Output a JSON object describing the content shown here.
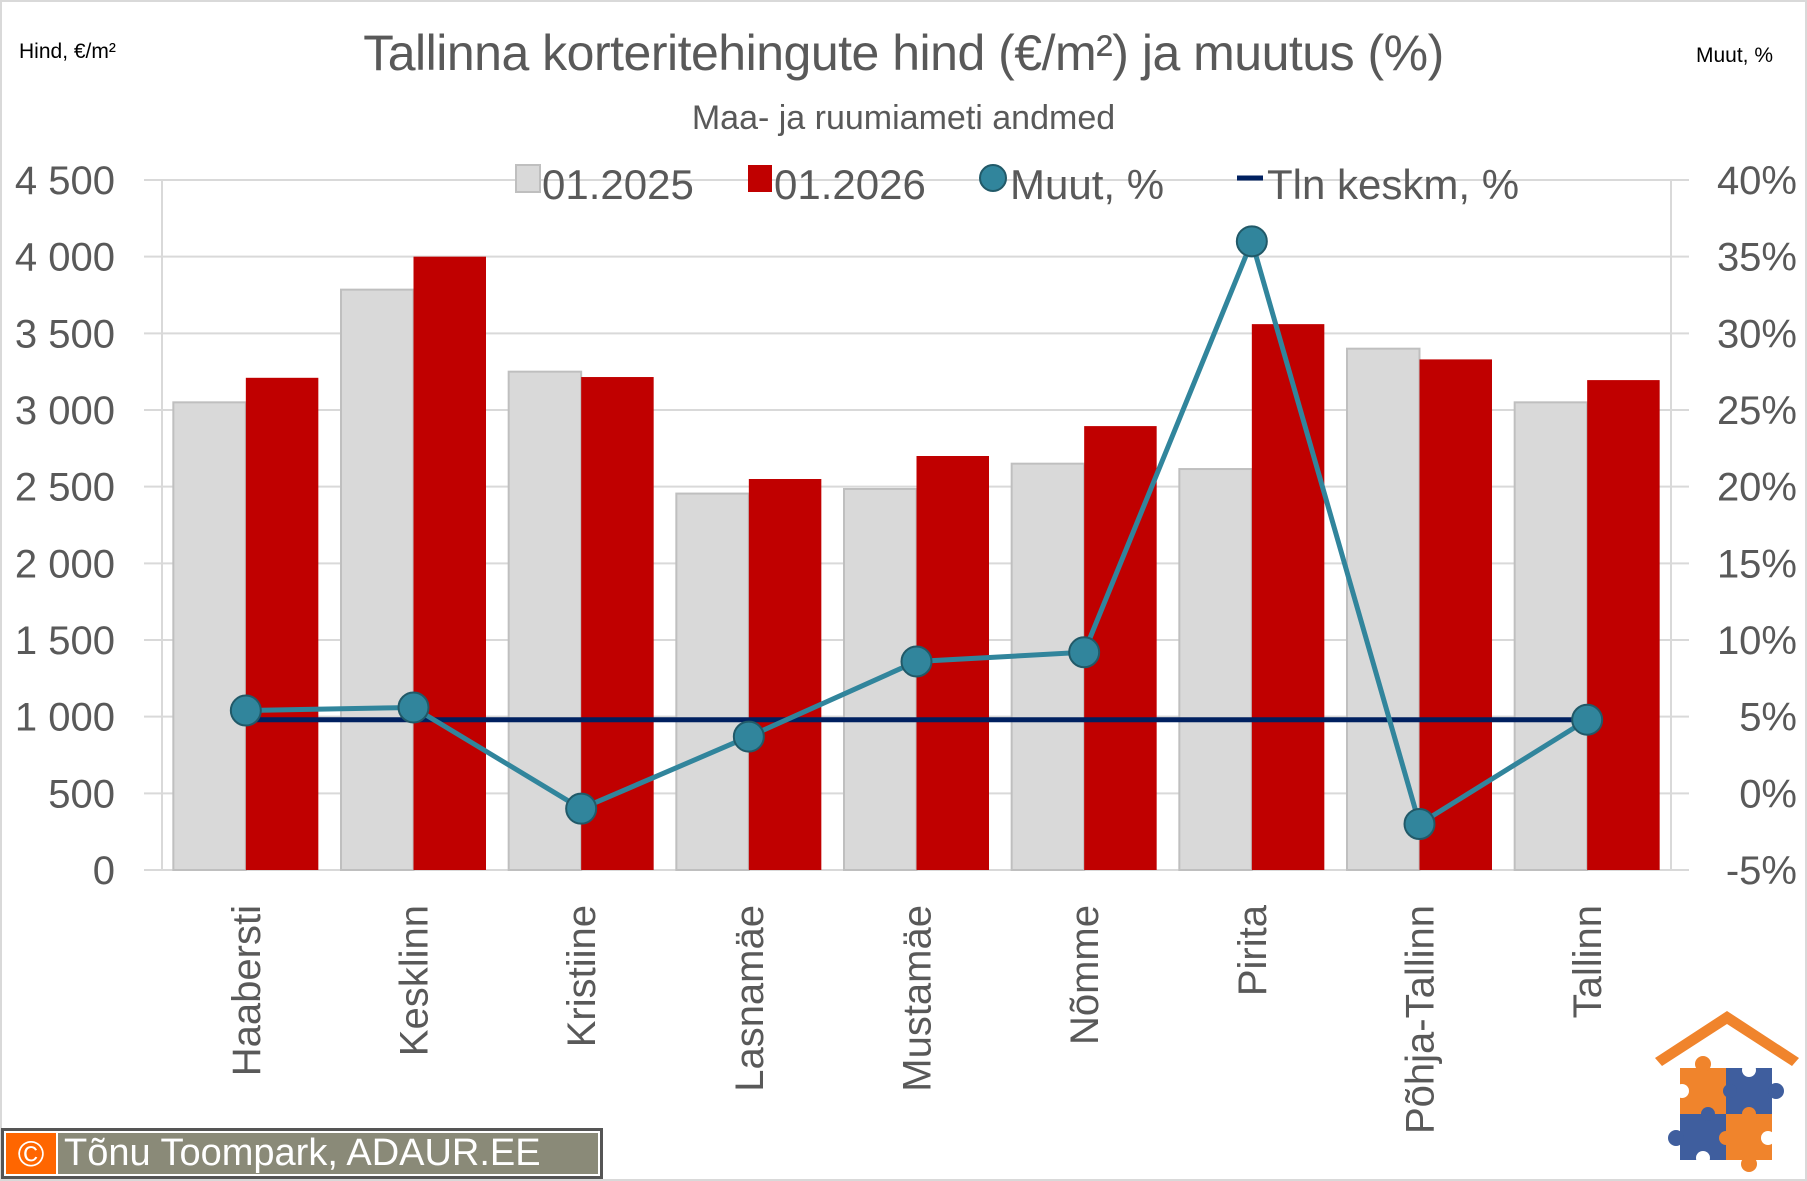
{
  "header": {
    "title": "Tallinna korteritehingute hind (€/m²) ja muutus (%)",
    "subtitle": "Maa- ja ruumiameti andmed",
    "left_axis_title": "Hind, €/m²",
    "right_axis_title": "Muut, %"
  },
  "legend": {
    "items": [
      {
        "label": "01.2025",
        "type": "bar",
        "color": "#d9d9d9"
      },
      {
        "label": "01.2026",
        "type": "bar",
        "color": "#c00000"
      },
      {
        "label": "Muut, %",
        "type": "line-marker",
        "color": "#31859c"
      },
      {
        "label": "Tln keskm, %",
        "type": "line",
        "color": "#002060"
      }
    ]
  },
  "footer": {
    "copyright_symbol": "©",
    "copyright_text": "Tõnu Toompark, ADAUR.EE"
  },
  "logo": {
    "name": "adaur-house-puzzle-logo",
    "colors": {
      "orange": "#f0842c",
      "blue": "#3f5e9e"
    }
  },
  "colors": {
    "bar_2025": "#d9d9d9",
    "bar_2025_border": "#bfbfbf",
    "bar_2026": "#c00000",
    "change_line": "#31859c",
    "marker_border": "#215968",
    "average_line": "#002060",
    "grid": "#d9d9d9",
    "text": "#595959"
  },
  "chart_data": {
    "type": "bar",
    "title": "Tallinna korteritehingute hind (€/m²) ja muutus (%)",
    "subtitle": "Maa- ja ruumiameti andmed",
    "xlabel": "",
    "ylabel": "Hind, €/m²",
    "y2label": "Muut, %",
    "ylim": [
      0,
      4500
    ],
    "y2lim": [
      -5,
      40
    ],
    "yticks": [
      "0",
      "500",
      "1 000",
      "1 500",
      "2 000",
      "2 500",
      "3 000",
      "3 500",
      "4 000",
      "4 500"
    ],
    "y2ticks": [
      "-5%",
      "0%",
      "5%",
      "10%",
      "15%",
      "20%",
      "25%",
      "30%",
      "35%",
      "40%"
    ],
    "grid": true,
    "legend_position": "top",
    "categories": [
      "Haabersti",
      "Kesklinn",
      "Kristiine",
      "Lasnamäe",
      "Mustamäe",
      "Nõmme",
      "Pirita",
      "Põhja-Tallinn",
      "Tallinn"
    ],
    "series": [
      {
        "name": "01.2025",
        "type": "bar",
        "axis": "left",
        "values": [
          3050,
          3785,
          3250,
          2455,
          2485,
          2650,
          2615,
          3400,
          3050
        ]
      },
      {
        "name": "01.2026",
        "type": "bar",
        "axis": "left",
        "values": [
          3210,
          4000,
          3215,
          2550,
          2700,
          2895,
          3560,
          3330,
          3195
        ]
      },
      {
        "name": "Muut, %",
        "type": "line",
        "axis": "right",
        "markers": true,
        "values": [
          5.4,
          5.6,
          -1.0,
          3.7,
          8.6,
          9.2,
          36.0,
          -2.0,
          4.8
        ]
      },
      {
        "name": "Tln keskm, %",
        "type": "line",
        "axis": "right",
        "markers": false,
        "values": [
          4.8,
          4.8,
          4.8,
          4.8,
          4.8,
          4.8,
          4.8,
          4.8,
          4.8
        ]
      }
    ]
  }
}
